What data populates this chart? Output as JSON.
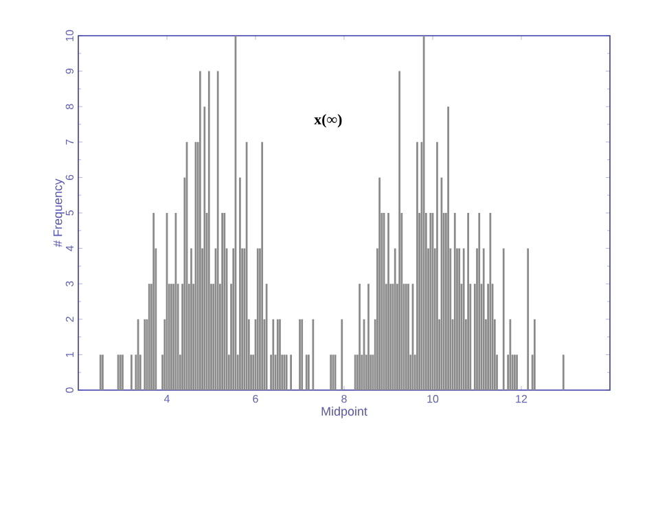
{
  "chart_data": {
    "type": "bar",
    "xlabel": "Midpoint",
    "ylabel": "# Frequency",
    "annotations": [
      "x(∞)"
    ],
    "color": "#8a8a8a",
    "xlim": [
      2,
      14
    ],
    "xticks": [
      4,
      6,
      8,
      10,
      12
    ],
    "ylim": [
      0,
      10
    ],
    "yticks": [
      0,
      1,
      2,
      3,
      4,
      5,
      6,
      7,
      8,
      9,
      10
    ],
    "x": [
      2.5,
      2.55,
      2.9,
      2.95,
      3.0,
      3.2,
      3.3,
      3.35,
      3.4,
      3.5,
      3.55,
      3.6,
      3.65,
      3.7,
      3.75,
      3.9,
      3.95,
      4.0,
      4.05,
      4.1,
      4.15,
      4.2,
      4.25,
      4.3,
      4.35,
      4.4,
      4.45,
      4.5,
      4.55,
      4.6,
      4.65,
      4.7,
      4.75,
      4.8,
      4.85,
      4.9,
      4.95,
      5.0,
      5.05,
      5.1,
      5.15,
      5.2,
      5.25,
      5.3,
      5.35,
      5.4,
      5.45,
      5.5,
      5.55,
      5.6,
      5.65,
      5.7,
      5.75,
      5.8,
      5.85,
      5.9,
      5.95,
      6.0,
      6.05,
      6.1,
      6.15,
      6.2,
      6.25,
      6.35,
      6.4,
      6.45,
      6.5,
      6.55,
      6.6,
      6.65,
      6.7,
      6.8,
      7.0,
      7.05,
      7.15,
      7.2,
      7.3,
      7.7,
      7.75,
      7.8,
      7.95,
      8.25,
      8.3,
      8.35,
      8.4,
      8.45,
      8.5,
      8.55,
      8.6,
      8.65,
      8.7,
      8.75,
      8.8,
      8.85,
      8.9,
      8.95,
      9.0,
      9.05,
      9.1,
      9.15,
      9.2,
      9.25,
      9.3,
      9.35,
      9.4,
      9.45,
      9.5,
      9.55,
      9.6,
      9.65,
      9.7,
      9.75,
      9.8,
      9.85,
      9.9,
      9.95,
      10.0,
      10.05,
      10.1,
      10.15,
      10.2,
      10.25,
      10.3,
      10.35,
      10.4,
      10.45,
      10.5,
      10.55,
      10.6,
      10.65,
      10.7,
      10.75,
      10.8,
      10.85,
      10.95,
      11.0,
      11.05,
      11.1,
      11.15,
      11.2,
      11.25,
      11.3,
      11.35,
      11.4,
      11.45,
      11.6,
      11.7,
      11.75,
      11.8,
      11.85,
      11.9,
      12.15,
      12.25,
      12.3,
      12.95
    ],
    "values": [
      1,
      1,
      1,
      1,
      1,
      1,
      1,
      2,
      1,
      2,
      2,
      3,
      3,
      5,
      4,
      1,
      2,
      5,
      3,
      3,
      3,
      5,
      3,
      1,
      3,
      6,
      7,
      3,
      4,
      3,
      7,
      7,
      9,
      4,
      8,
      5,
      9,
      3,
      3,
      4,
      9,
      3,
      5,
      5,
      4,
      1,
      3,
      4,
      10,
      1,
      6,
      4,
      4,
      7,
      2,
      1,
      1,
      2,
      4,
      4,
      7,
      2,
      3,
      1,
      2,
      1,
      2,
      2,
      1,
      1,
      1,
      1,
      2,
      2,
      1,
      1,
      2,
      1,
      1,
      1,
      2,
      1,
      1,
      3,
      1,
      2,
      1,
      3,
      1,
      1,
      2,
      4,
      6,
      5,
      5,
      3,
      5,
      3,
      3,
      4,
      3,
      9,
      5,
      3,
      3,
      3,
      1,
      3,
      1,
      7,
      5,
      7,
      10,
      5,
      4,
      5,
      5,
      4,
      7,
      2,
      6,
      5,
      5,
      8,
      4,
      2,
      5,
      4,
      4,
      3,
      4,
      2,
      5,
      3,
      3,
      4,
      5,
      3,
      4,
      2,
      3,
      5,
      3,
      2,
      1,
      4,
      1,
      2,
      1,
      1,
      1,
      4,
      1,
      2,
      1
    ]
  }
}
